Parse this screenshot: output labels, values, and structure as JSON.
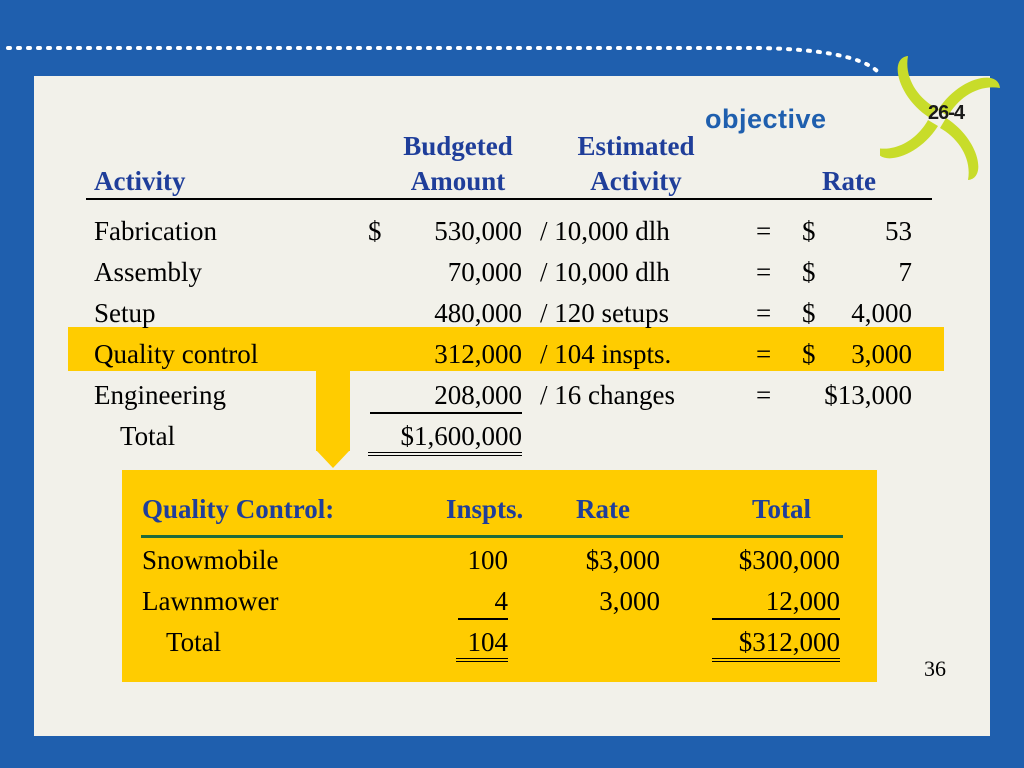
{
  "badge": {
    "word": "objective",
    "number": "26-4"
  },
  "main_table": {
    "headers": {
      "activity": "Activity",
      "budgeted_line1": "Budgeted",
      "budgeted_line2": "Amount",
      "estimated_line1": "Estimated",
      "estimated_line2": "Activity",
      "rate": "Rate"
    },
    "rows": [
      {
        "activity": "Fabrication",
        "dollar": "$",
        "amount": "530,000",
        "estimate": "/ 10,000 dlh",
        "eq": "=",
        "rate_dollar": "$",
        "rate": "53"
      },
      {
        "activity": "Assembly",
        "dollar": "",
        "amount": "70,000",
        "estimate": "/ 10,000 dlh",
        "eq": "=",
        "rate_dollar": "$",
        "rate": "7"
      },
      {
        "activity": "Setup",
        "dollar": "",
        "amount": "480,000",
        "estimate": "/ 120 setups",
        "eq": "=",
        "rate_dollar": "$",
        "rate": "4,000"
      },
      {
        "activity": "Quality control",
        "dollar": "",
        "amount": "312,000",
        "estimate": "/ 104 inspts.",
        "eq": "=",
        "rate_dollar": "$",
        "rate": "3,000"
      },
      {
        "activity": "Engineering",
        "dollar": "",
        "amount": "208,000",
        "estimate": "/ 16 changes",
        "eq": "=",
        "rate_dollar": "",
        "rate": "$13,000"
      }
    ],
    "total_label": "Total",
    "total_amount": "$1,600,000"
  },
  "qc_table": {
    "headers": {
      "title": "Quality Control:",
      "inspts": "Inspts.",
      "rate": "Rate",
      "total": "Total"
    },
    "rows": [
      {
        "product": "Snowmobile",
        "inspts": "100",
        "rate": "$3,000",
        "total": "$300,000"
      },
      {
        "product": "Lawnmower",
        "inspts": "4",
        "rate": "3,000",
        "total": "12,000"
      }
    ],
    "total_label": "Total",
    "total_inspts": "104",
    "total_amount": "$312,000"
  },
  "page_number": "36",
  "colors": {
    "frame": "#1f5fae",
    "panel": "#f2f1ea",
    "highlight": "#ffcc00",
    "header_text": "#1f3e9a",
    "rule_green": "#1e6b3a",
    "pinwheel": "#c8dc2a"
  }
}
